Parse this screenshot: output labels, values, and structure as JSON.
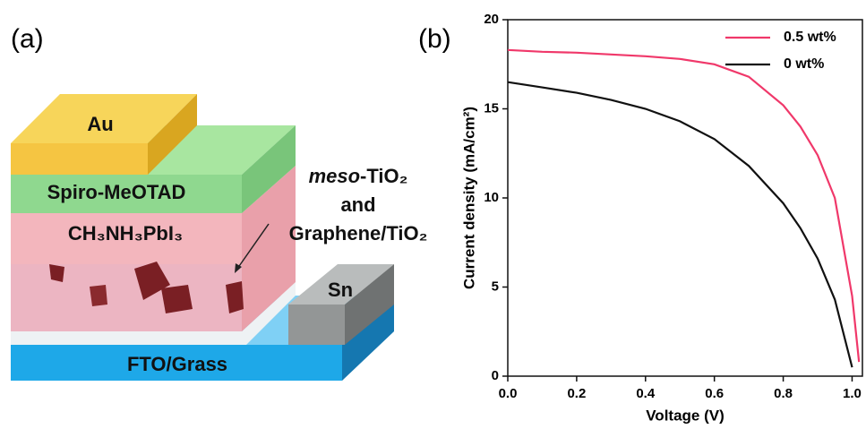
{
  "diagram": {
    "panel_label": "(a)",
    "layers": {
      "au": "Au",
      "spiro": "Spiro-MeOTAD",
      "perovskite": "CH₃NH₃PbI₃",
      "sn": "Sn",
      "fto": "FTO/Grass"
    },
    "callout": {
      "italic": "meso",
      "lines": [
        "-TiO₂",
        "and",
        "Graphene/TiO₂"
      ]
    }
  },
  "chart_data": {
    "type": "line",
    "panel_label": "(b)",
    "x_label": "Voltage (V)",
    "y_label": "Current density (mA/cm²)",
    "x": [
      0,
      0.1,
      0.2,
      0.3,
      0.4,
      0.5,
      0.6,
      0.7,
      0.8,
      0.85,
      0.9,
      0.95,
      1.0,
      1.02
    ],
    "series": [
      {
        "name": "0.5 wt%",
        "color": "#f0386a",
        "values": [
          18.3,
          18.2,
          18.15,
          18.05,
          17.95,
          17.8,
          17.5,
          16.8,
          15.2,
          14.0,
          12.4,
          10.0,
          4.5,
          0.8
        ]
      },
      {
        "name": "0 wt%",
        "color": "#111111",
        "values": [
          16.5,
          16.2,
          15.9,
          15.5,
          15.0,
          14.3,
          13.3,
          11.8,
          9.7,
          8.3,
          6.6,
          4.3,
          0.5,
          null
        ]
      }
    ],
    "xlim": [
      0,
      1.03
    ],
    "ylim": [
      0,
      20
    ],
    "xticks": [
      {
        "value": 0,
        "label": "0.0"
      },
      0.2,
      0.4,
      0.6,
      0.8,
      {
        "value": 1,
        "label": "1.0"
      }
    ],
    "yticks": [
      0,
      5,
      10,
      15,
      20
    ],
    "legend": "upper right"
  }
}
